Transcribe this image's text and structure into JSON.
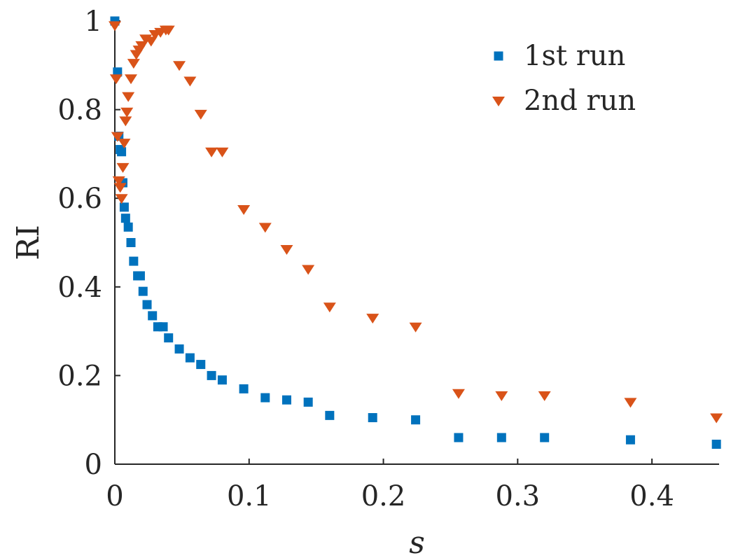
{
  "chart_data": {
    "type": "scatter",
    "title": "",
    "xlabel": "s",
    "ylabel": "RI",
    "xlim": [
      0,
      0.45
    ],
    "ylim": [
      0,
      1
    ],
    "xticks": [
      "0",
      "0.1",
      "0.2",
      "0.3",
      "0.4"
    ],
    "yticks": [
      "0",
      "0.2",
      "0.4",
      "0.6",
      "0.8",
      "1"
    ],
    "grid": false,
    "legend_position": "top-right",
    "series": [
      {
        "name": "1st run",
        "marker": "square",
        "color": "#0072BD",
        "points": [
          [
            0.0,
            1.0
          ],
          [
            0.002,
            0.885
          ],
          [
            0.003,
            0.74
          ],
          [
            0.004,
            0.71
          ],
          [
            0.005,
            0.705
          ],
          [
            0.006,
            0.635
          ],
          [
            0.007,
            0.58
          ],
          [
            0.008,
            0.555
          ],
          [
            0.01,
            0.535
          ],
          [
            0.012,
            0.5
          ],
          [
            0.014,
            0.458
          ],
          [
            0.017,
            0.425
          ],
          [
            0.019,
            0.425
          ],
          [
            0.021,
            0.39
          ],
          [
            0.024,
            0.36
          ],
          [
            0.028,
            0.335
          ],
          [
            0.032,
            0.31
          ],
          [
            0.036,
            0.31
          ],
          [
            0.04,
            0.285
          ],
          [
            0.048,
            0.26
          ],
          [
            0.056,
            0.24
          ],
          [
            0.064,
            0.225
          ],
          [
            0.072,
            0.2
          ],
          [
            0.08,
            0.19
          ],
          [
            0.096,
            0.17
          ],
          [
            0.112,
            0.15
          ],
          [
            0.128,
            0.145
          ],
          [
            0.144,
            0.14
          ],
          [
            0.16,
            0.11
          ],
          [
            0.192,
            0.105
          ],
          [
            0.224,
            0.1
          ],
          [
            0.256,
            0.06
          ],
          [
            0.288,
            0.06
          ],
          [
            0.32,
            0.06
          ],
          [
            0.384,
            0.055
          ],
          [
            0.448,
            0.045
          ]
        ]
      },
      {
        "name": "2nd run",
        "marker": "triangle-down",
        "color": "#D95319",
        "points": [
          [
            0.0,
            0.99
          ],
          [
            0.001,
            0.87
          ],
          [
            0.002,
            0.74
          ],
          [
            0.003,
            0.64
          ],
          [
            0.004,
            0.625
          ],
          [
            0.005,
            0.6
          ],
          [
            0.006,
            0.67
          ],
          [
            0.007,
            0.725
          ],
          [
            0.008,
            0.775
          ],
          [
            0.009,
            0.795
          ],
          [
            0.01,
            0.83
          ],
          [
            0.012,
            0.87
          ],
          [
            0.014,
            0.905
          ],
          [
            0.016,
            0.925
          ],
          [
            0.018,
            0.935
          ],
          [
            0.02,
            0.945
          ],
          [
            0.023,
            0.96
          ],
          [
            0.027,
            0.955
          ],
          [
            0.03,
            0.97
          ],
          [
            0.034,
            0.975
          ],
          [
            0.038,
            0.98
          ],
          [
            0.04,
            0.98
          ],
          [
            0.048,
            0.9
          ],
          [
            0.056,
            0.865
          ],
          [
            0.064,
            0.79
          ],
          [
            0.072,
            0.705
          ],
          [
            0.08,
            0.705
          ],
          [
            0.096,
            0.575
          ],
          [
            0.112,
            0.535
          ],
          [
            0.128,
            0.485
          ],
          [
            0.144,
            0.44
          ],
          [
            0.16,
            0.355
          ],
          [
            0.192,
            0.33
          ],
          [
            0.224,
            0.31
          ],
          [
            0.256,
            0.16
          ],
          [
            0.288,
            0.155
          ],
          [
            0.32,
            0.155
          ],
          [
            0.384,
            0.14
          ],
          [
            0.448,
            0.105
          ]
        ]
      }
    ]
  }
}
